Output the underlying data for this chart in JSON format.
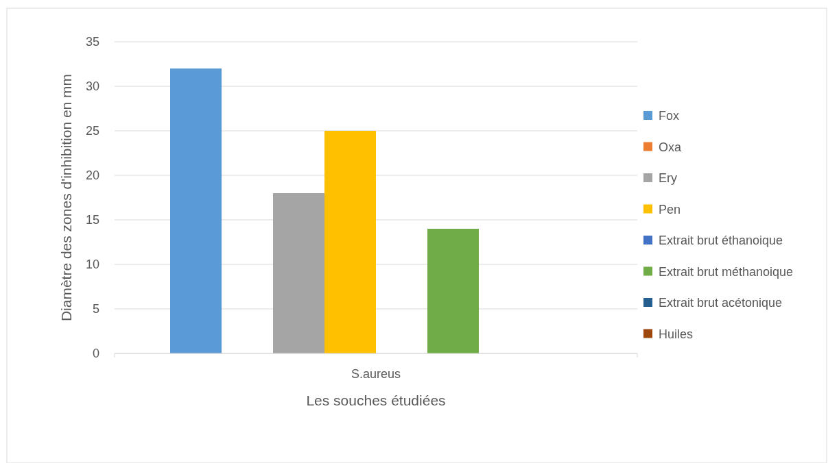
{
  "chart_data": {
    "type": "bar",
    "xlabel": "Les souches étudiées",
    "ylabel": "Diamètre des zones d'inhibition en mm",
    "categories": [
      "S.aureus"
    ],
    "series": [
      {
        "name": "Fox",
        "color": "#5b9bd5",
        "values": [
          32
        ]
      },
      {
        "name": "Oxa",
        "color": "#ed7d31",
        "values": [
          0
        ]
      },
      {
        "name": "Ery",
        "color": "#a5a5a5",
        "values": [
          18
        ]
      },
      {
        "name": "Pen",
        "color": "#ffc000",
        "values": [
          25
        ]
      },
      {
        "name": "Extrait brut éthanoique",
        "color": "#4472c4",
        "values": [
          0
        ]
      },
      {
        "name": "Extrait brut méthanoique",
        "color": "#70ad47",
        "values": [
          14
        ]
      },
      {
        "name": "Extrait brut acétonique",
        "color": "#255e91",
        "values": [
          0
        ]
      },
      {
        "name": "Huiles",
        "color": "#9e480e",
        "values": [
          0
        ]
      }
    ],
    "ylim": [
      0,
      35
    ],
    "yticks": [
      0,
      5,
      10,
      15,
      20,
      25,
      30,
      35
    ],
    "grid": "y",
    "legend": "right"
  }
}
